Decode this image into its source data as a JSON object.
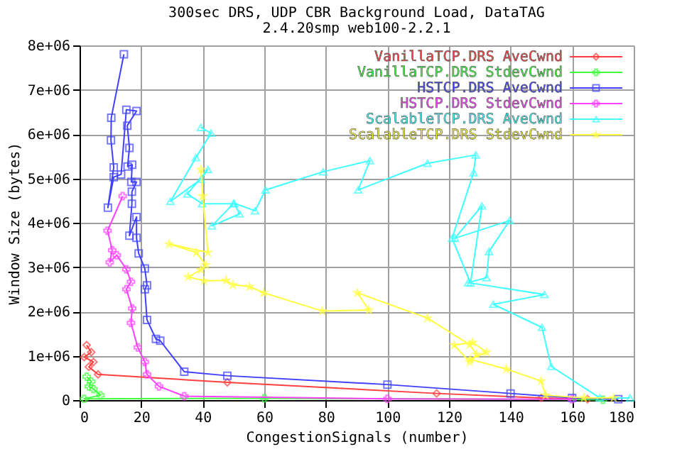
{
  "chart_data": {
    "type": "line",
    "title": "300sec DRS, UDP CBR Background Load, DataTAG",
    "subtitle": "2.4.20smp web100-2.2.1",
    "xlabel": "CongestionSignals (number)",
    "ylabel": "Window Size (bytes)",
    "xlim": [
      0,
      180
    ],
    "xticks": [
      0,
      20,
      40,
      60,
      80,
      100,
      120,
      140,
      160,
      180
    ],
    "ylim": [
      0,
      8000000
    ],
    "yticks": [
      0,
      {
        "value": 1000000,
        "label": "1e+06"
      },
      {
        "value": 2000000,
        "label": "2e+06"
      },
      {
        "value": 3000000,
        "label": "3e+06"
      },
      {
        "value": 4000000,
        "label": "4e+06"
      },
      {
        "value": 5000000,
        "label": "5e+06"
      },
      {
        "value": 6000000,
        "label": "6e+06"
      },
      {
        "value": 7000000,
        "label": "7e+06"
      },
      {
        "value": 8000000,
        "label": "8e+06"
      }
    ],
    "grid": true,
    "legend": "top right",
    "line_style": "solid",
    "series": [
      {
        "name": "VanillaTCP.DRS AveCwnd",
        "color": "#ff4040",
        "marker": "diamond",
        "x": [
          2.3,
          3.8,
          1.5,
          4.5,
          3,
          6,
          48,
          116,
          150,
          165
        ],
        "values": [
          1240000,
          1080000,
          970000,
          860000,
          750000,
          580000,
          400000,
          150000,
          50000,
          20000
        ]
      },
      {
        "name": "VanillaTCP.DRS StdevCwnd",
        "color": "#40ff40",
        "marker": "cross",
        "x": [
          2.3,
          3.8,
          3,
          4.5,
          6.8,
          1.5,
          60,
          170
        ],
        "values": [
          530000,
          420000,
          310000,
          250000,
          110000,
          30000,
          40000,
          10000
        ]
      },
      {
        "name": "HSTCP.DRS AveCwnd",
        "color": "#4040ff",
        "marker": "square",
        "x": [
          14.4,
          10.3,
          10.2,
          11.1,
          9.2,
          11.1,
          13.5,
          15.2,
          18.5,
          15.5,
          16.2,
          15.6,
          17.1,
          16.8,
          18.5,
          17,
          17,
          16.2,
          18.5,
          18.5,
          19.2,
          21.2,
          21.9,
          21.2,
          21.9,
          24.8,
          26.2,
          34,
          48,
          100,
          140,
          160,
          175
        ],
        "values": [
          7800000,
          6370000,
          5860000,
          5250000,
          4340000,
          5030000,
          5090000,
          6550000,
          6520000,
          6190000,
          5690000,
          5270000,
          5310000,
          4920000,
          4920000,
          4700000,
          4430000,
          3710000,
          4130000,
          3660000,
          3310000,
          2970000,
          2590000,
          2500000,
          1810000,
          1380000,
          1340000,
          640000,
          550000,
          350000,
          150000,
          50000,
          20000
        ]
      },
      {
        "name": "HSTCP.DRS StdevCwnd",
        "color": "#ff40ff",
        "marker": "cross",
        "x": [
          14,
          9.1,
          10.6,
          9.8,
          12.1,
          15.2,
          16.7,
          15.2,
          17.1,
          16.7,
          18.9,
          21.2,
          21.9,
          25.8,
          34,
          100,
          160
        ],
        "values": [
          4600000,
          3820000,
          3380000,
          3110000,
          3270000,
          2950000,
          2670000,
          2500000,
          2070000,
          1740000,
          1190000,
          860000,
          580000,
          310000,
          90000,
          30000,
          20000
        ]
      },
      {
        "name": "ScalableTCP.DRS AveCwnd",
        "color": "#40ffff",
        "marker": "triangle",
        "x": [
          39.4,
          42.7,
          37.8,
          29.5,
          39.4,
          41.7,
          35,
          39.8,
          50,
          43,
          52,
          50.2,
          57,
          60.4,
          79.1,
          94.3,
          90.5,
          113,
          128.7,
          128,
          121,
          127,
          130.7,
          121.9,
          139.7,
          133,
          132.2,
          126.2,
          151,
          134.4,
          150.2,
          153.2,
          169,
          178.8
        ],
        "values": [
          6150000,
          6020000,
          5470000,
          4480000,
          4980000,
          5200000,
          4650000,
          4430000,
          4430000,
          3930000,
          4200000,
          4440000,
          4270000,
          4740000,
          5150000,
          5400000,
          4740000,
          5340000,
          5530000,
          5130000,
          3650000,
          2640000,
          4380000,
          3650000,
          4050000,
          3350000,
          2760000,
          2650000,
          2380000,
          2160000,
          1640000,
          760000,
          50000,
          50000
        ]
      },
      {
        "name": "ScalableTCP.DRS StdevCwnd",
        "color": "#ffff40",
        "marker": "star",
        "x": [
          39.4,
          40,
          41.7,
          29.1,
          37.9,
          41,
          39.4,
          35.3,
          40.4,
          47.6,
          49.8,
          55.2,
          59.8,
          78.8,
          94,
          90.2,
          113,
          126.7,
          129,
          126.7,
          121.7,
          127.7,
          132.2,
          126.9,
          138.6,
          149.9,
          151.4,
          163.8,
          173.5
        ],
        "values": [
          5200000,
          4600000,
          3330000,
          3520000,
          3330000,
          3050000,
          2940000,
          2780000,
          2690000,
          2700000,
          2600000,
          2560000,
          2420000,
          2010000,
          2030000,
          2420000,
          1850000,
          1250000,
          1030000,
          860000,
          1240000,
          1300000,
          1080000,
          920000,
          700000,
          430000,
          110000,
          50000,
          50000
        ]
      }
    ]
  }
}
